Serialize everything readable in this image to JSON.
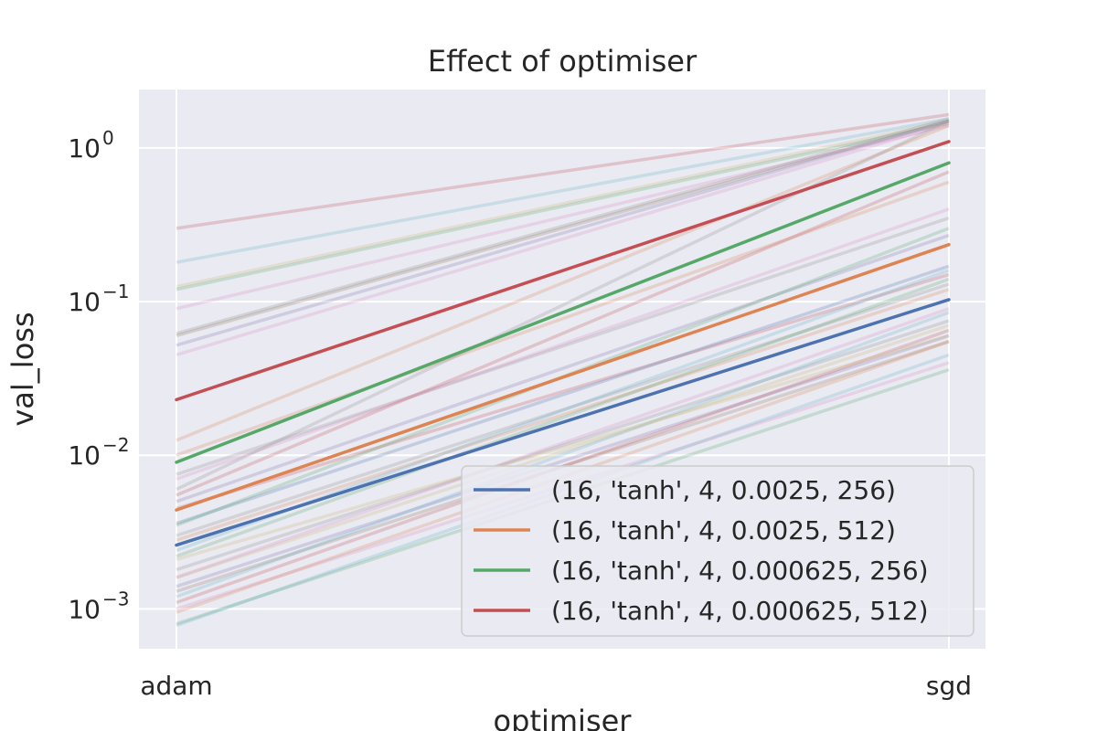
{
  "chart_data": {
    "type": "line",
    "title": "Effect of optimiser",
    "xlabel": "optimiser",
    "ylabel": "val_loss",
    "categories": [
      "adam",
      "sgd"
    ],
    "yscale": "log",
    "ylim": [
      0.00055,
      2.4
    ],
    "yticks": [
      {
        "value": 0.001,
        "base": "10",
        "exp": "−3"
      },
      {
        "value": 0.01,
        "base": "10",
        "exp": "−2"
      },
      {
        "value": 0.1,
        "base": "10",
        "exp": "−1"
      },
      {
        "value": 1,
        "base": "10",
        "exp": "0"
      }
    ],
    "grid": true,
    "legend_position": "lower right",
    "series": [
      {
        "name": "(16, 'tanh', 4, 0.0025, 256)",
        "values": [
          0.0026,
          0.103
        ],
        "color": "#4c72b0"
      },
      {
        "name": "(16, 'tanh', 4, 0.0025, 512)",
        "values": [
          0.0044,
          0.235
        ],
        "color": "#dd8452"
      },
      {
        "name": "(16, 'tanh', 4, 0.000625, 256)",
        "values": [
          0.009,
          0.8
        ],
        "color": "#55a868"
      },
      {
        "name": "(16, 'tanh', 4, 0.000625, 512)",
        "values": [
          0.023,
          1.1
        ],
        "color": "#c44e52"
      }
    ],
    "background_series": [
      {
        "values": [
          0.3,
          1.65
        ],
        "color": "#c44e52"
      },
      {
        "values": [
          0.18,
          1.55
        ],
        "color": "#64b5cd"
      },
      {
        "values": [
          0.125,
          1.5
        ],
        "color": "#ccb974"
      },
      {
        "values": [
          0.12,
          1.45
        ],
        "color": "#55a868"
      },
      {
        "values": [
          0.09,
          1.4
        ],
        "color": "#da8bc3"
      },
      {
        "values": [
          0.062,
          1.55
        ],
        "color": "#8c8c8c"
      },
      {
        "values": [
          0.06,
          1.5
        ],
        "color": "#937860"
      },
      {
        "values": [
          0.052,
          1.5
        ],
        "color": "#8172b3"
      },
      {
        "values": [
          0.045,
          1.45
        ],
        "color": "#da8bc3"
      },
      {
        "values": [
          0.0125,
          1.4
        ],
        "color": "#dd8452"
      },
      {
        "values": [
          0.01,
          0.6
        ],
        "color": "#dd8452"
      },
      {
        "values": [
          0.0075,
          0.35
        ],
        "color": "#8c8c8c"
      },
      {
        "values": [
          0.007,
          0.4
        ],
        "color": "#da8bc3"
      },
      {
        "values": [
          0.0055,
          0.7
        ],
        "color": "#c44e52"
      },
      {
        "values": [
          0.005,
          0.27
        ],
        "color": "#8172b3"
      },
      {
        "values": [
          0.0045,
          0.15
        ],
        "color": "#c44e52"
      },
      {
        "values": [
          0.0036,
          0.17
        ],
        "color": "#4c72b0"
      },
      {
        "values": [
          0.003,
          0.13
        ],
        "color": "#8c8c8c"
      },
      {
        "values": [
          0.0028,
          0.12
        ],
        "color": "#dd8452"
      },
      {
        "values": [
          0.0024,
          0.16
        ],
        "color": "#64b5cd"
      },
      {
        "values": [
          0.0022,
          0.14
        ],
        "color": "#55a868"
      },
      {
        "values": [
          0.0018,
          0.075
        ],
        "color": "#8c8c8c"
      },
      {
        "values": [
          0.0016,
          0.07
        ],
        "color": "#ccb974"
      },
      {
        "values": [
          0.0014,
          0.06
        ],
        "color": "#8172b3"
      },
      {
        "values": [
          0.0013,
          0.055
        ],
        "color": "#937860"
      },
      {
        "values": [
          0.0012,
          0.085
        ],
        "color": "#64b5cd"
      },
      {
        "values": [
          0.0011,
          0.065
        ],
        "color": "#c44e52"
      },
      {
        "values": [
          0.001,
          0.04
        ],
        "color": "#da8bc3"
      },
      {
        "values": [
          0.00095,
          0.055
        ],
        "color": "#dd8452"
      },
      {
        "values": [
          0.0008,
          0.036
        ],
        "color": "#55a868"
      },
      {
        "values": [
          0.00078,
          0.045
        ],
        "color": "#64b5cd"
      },
      {
        "values": [
          0.0016,
          0.09
        ],
        "color": "#da8bc3"
      },
      {
        "values": [
          0.0035,
          0.3
        ],
        "color": "#55a868"
      },
      {
        "values": [
          0.006,
          1.5
        ],
        "color": "#8c8c8c"
      },
      {
        "values": [
          0.0021,
          0.06
        ],
        "color": "#ccb974"
      }
    ]
  }
}
